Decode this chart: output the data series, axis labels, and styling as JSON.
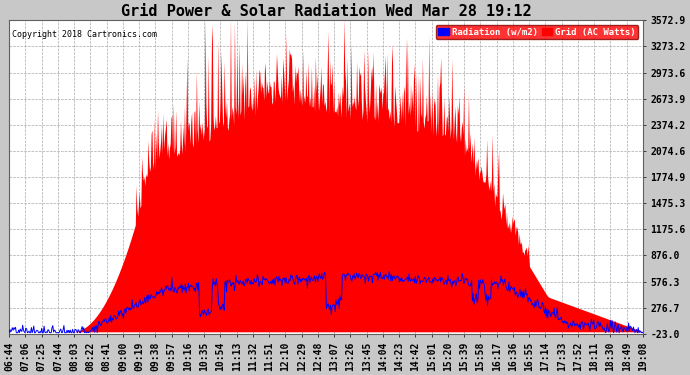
{
  "title": "Grid Power & Solar Radiation Wed Mar 28 19:12",
  "copyright": "Copyright 2018 Cartronics.com",
  "legend_labels": [
    "Radiation (w/m2)",
    "Grid (AC Watts)"
  ],
  "yticks": [
    -23.0,
    276.7,
    576.3,
    876.0,
    1175.6,
    1475.3,
    1774.9,
    2074.6,
    2374.2,
    2673.9,
    2973.6,
    3273.2,
    3572.9
  ],
  "ymin": -23.0,
  "ymax": 3572.9,
  "background_color": "#c8c8c8",
  "plot_bg_color": "#ffffff",
  "title_fontsize": 11,
  "tick_fontsize": 7,
  "x_labels": [
    "06:44",
    "07:06",
    "07:25",
    "07:44",
    "08:03",
    "08:22",
    "08:41",
    "09:00",
    "09:19",
    "09:38",
    "09:57",
    "10:16",
    "10:35",
    "10:54",
    "11:13",
    "11:32",
    "11:51",
    "12:10",
    "12:29",
    "12:48",
    "13:07",
    "13:26",
    "13:45",
    "14:04",
    "14:23",
    "14:42",
    "15:01",
    "15:20",
    "15:39",
    "15:58",
    "16:17",
    "16:36",
    "16:55",
    "17:14",
    "17:33",
    "17:52",
    "18:11",
    "18:30",
    "18:49",
    "19:08"
  ]
}
